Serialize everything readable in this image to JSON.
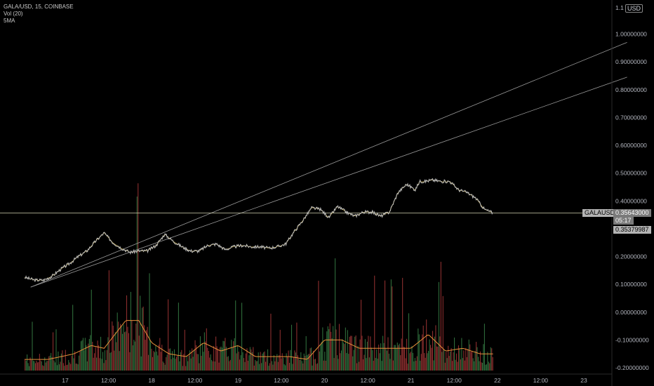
{
  "legend": {
    "symbol": "GALA/USD, 15, COINBASE",
    "volume": "Vol (20)",
    "ma": "5MA"
  },
  "currency": "USD",
  "price_labels": {
    "symbol": "GALAUSD",
    "last_price": "0.35643000",
    "countdown": "05:17",
    "ma_value": "0.35379987"
  },
  "colors": {
    "price_line": "#b8b8b8",
    "ma_line": "#e0c870",
    "volume_up": "#2e6b3a",
    "volume_down": "#8b2e2e",
    "volume_ma": "#e8903a",
    "trendline": "#9a9a9a",
    "horizontal_line": "#d0d0b0",
    "last_price_bg": "#7a7a7a",
    "symbol_bg": "#b4b4b4"
  },
  "chart_data": {
    "type": "line",
    "title": "",
    "xlabel": "",
    "ylabel": "",
    "ylim": [
      -0.2,
      1.1
    ],
    "x_ticks": [
      "17",
      "12:00",
      "18",
      "12:00",
      "19",
      "12:00",
      "20",
      "12:00",
      "21",
      "12:00",
      "22",
      "12:00",
      "23"
    ],
    "x_tick_positions": [
      0.5,
      1.0,
      1.5,
      2.0,
      2.5,
      3.0,
      3.5,
      4.0,
      4.5,
      5.0,
      5.5,
      6.0,
      6.5
    ],
    "y_ticks": [
      "1.00000000",
      "0.90000000",
      "0.80000000",
      "0.70000000",
      "0.60000000",
      "0.50000000",
      "0.40000000",
      "0.30000000",
      "0.20000000",
      "0.10000000",
      "0.00000000",
      "-0.10000000",
      "-0.20000000"
    ],
    "y_tick_values": [
      1.0,
      0.9,
      0.8,
      0.7,
      0.6,
      0.5,
      0.4,
      0.3,
      0.2,
      0.1,
      0.0,
      -0.1,
      -0.2
    ],
    "y_top_partial": "1.1",
    "x_range": [
      0.0,
      7.0
    ],
    "price": {
      "x": [
        0.03,
        0.15,
        0.25,
        0.35,
        0.45,
        0.55,
        0.65,
        0.75,
        0.85,
        0.95,
        1.05,
        1.15,
        1.25,
        1.35,
        1.45,
        1.55,
        1.65,
        1.75,
        1.85,
        1.95,
        2.05,
        2.15,
        2.25,
        2.35,
        2.45,
        2.55,
        2.65,
        2.75,
        2.85,
        2.95,
        3.05,
        3.15,
        3.25,
        3.35,
        3.45,
        3.55,
        3.65,
        3.75,
        3.85,
        3.95,
        4.05,
        4.15,
        4.25,
        4.35,
        4.45,
        4.55,
        4.6,
        4.65,
        4.75,
        4.85,
        4.95,
        5.05,
        5.15,
        5.25,
        5.35,
        5.45
      ],
      "y": [
        0.125,
        0.115,
        0.115,
        0.13,
        0.155,
        0.175,
        0.2,
        0.22,
        0.255,
        0.285,
        0.25,
        0.23,
        0.215,
        0.22,
        0.22,
        0.24,
        0.28,
        0.255,
        0.235,
        0.22,
        0.22,
        0.24,
        0.245,
        0.225,
        0.235,
        0.24,
        0.235,
        0.235,
        0.23,
        0.235,
        0.245,
        0.29,
        0.33,
        0.375,
        0.37,
        0.34,
        0.38,
        0.36,
        0.345,
        0.36,
        0.36,
        0.345,
        0.36,
        0.43,
        0.46,
        0.44,
        0.47,
        0.47,
        0.475,
        0.47,
        0.47,
        0.44,
        0.43,
        0.41,
        0.37,
        0.3564
      ]
    },
    "volume_ma": {
      "x": [
        0.03,
        0.3,
        0.6,
        0.8,
        0.95,
        1.1,
        1.2,
        1.35,
        1.5,
        1.7,
        1.9,
        2.1,
        2.3,
        2.5,
        2.7,
        2.9,
        3.1,
        3.3,
        3.5,
        3.7,
        3.9,
        4.1,
        4.3,
        4.5,
        4.7,
        4.9,
        5.1,
        5.3,
        5.45
      ],
      "y": [
        -0.17,
        -0.17,
        -0.15,
        -0.12,
        -0.13,
        -0.07,
        -0.03,
        -0.03,
        -0.11,
        -0.15,
        -0.16,
        -0.11,
        -0.14,
        -0.12,
        -0.16,
        -0.16,
        -0.16,
        -0.17,
        -0.1,
        -0.1,
        -0.13,
        -0.13,
        -0.13,
        -0.13,
        -0.08,
        -0.14,
        -0.13,
        -0.15,
        -0.15
      ]
    },
    "trendlines": [
      {
        "x": [
          0.1,
          7.0
        ],
        "y": [
          0.09,
          0.97
        ]
      },
      {
        "x": [
          0.1,
          7.0
        ],
        "y": [
          0.09,
          0.845
        ]
      }
    ],
    "horizontal_line": 0.3564
  }
}
